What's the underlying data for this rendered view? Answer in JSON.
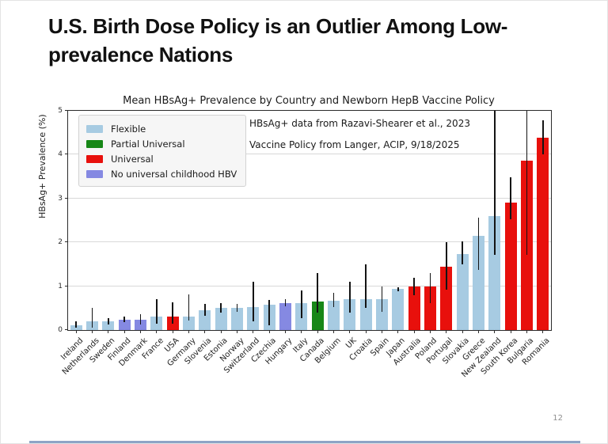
{
  "slide": {
    "title": "U.S. Birth Dose Policy is an Outlier Among Low-prevalence Nations",
    "page_number": "12"
  },
  "chart_data": {
    "type": "bar",
    "title": "Mean HBsAg+ Prevalence by Country and Newborn HepB Vaccine Policy",
    "xlabel": "",
    "ylabel": "HBsAg+ Prevalence (%)",
    "ylim": [
      0,
      5
    ],
    "yticks": [
      0,
      1,
      2,
      3,
      4,
      5
    ],
    "grid": true,
    "legend_position": "upper-left",
    "annotations": [
      "HBsAg+ data from Razavi-Shearer et al., 2023",
      "Vaccine Policy from Langer, ACIP, 9/18/2025"
    ],
    "legend": [
      {
        "key": "flexible",
        "label": "Flexible",
        "color": "#a7cbe2"
      },
      {
        "key": "partial",
        "label": "Partial Universal",
        "color": "#178717"
      },
      {
        "key": "universal",
        "label": "Universal",
        "color": "#e8100c"
      },
      {
        "key": "none",
        "label": "No universal childhood HBV",
        "color": "#8589e2"
      }
    ],
    "bars": [
      {
        "country": "Ireland",
        "value": 0.1,
        "err_low": 0.05,
        "err_high": 0.2,
        "policy": "flexible"
      },
      {
        "country": "Netherlands",
        "value": 0.19,
        "err_low": 0.05,
        "err_high": 0.5,
        "policy": "flexible"
      },
      {
        "country": "Sweden",
        "value": 0.2,
        "err_low": 0.12,
        "err_high": 0.28,
        "policy": "flexible"
      },
      {
        "country": "Finland",
        "value": 0.24,
        "err_low": 0.18,
        "err_high": 0.3,
        "policy": "none"
      },
      {
        "country": "Denmark",
        "value": 0.24,
        "err_low": 0.13,
        "err_high": 0.37,
        "policy": "none"
      },
      {
        "country": "France",
        "value": 0.3,
        "err_low": 0.15,
        "err_high": 0.7,
        "policy": "flexible"
      },
      {
        "country": "USA",
        "value": 0.3,
        "err_low": 0.15,
        "err_high": 0.64,
        "policy": "universal"
      },
      {
        "country": "Germany",
        "value": 0.31,
        "err_low": 0.22,
        "err_high": 0.81,
        "policy": "flexible"
      },
      {
        "country": "Slovenia",
        "value": 0.45,
        "err_low": 0.33,
        "err_high": 0.6,
        "policy": "flexible"
      },
      {
        "country": "Estonia",
        "value": 0.5,
        "err_low": 0.4,
        "err_high": 0.62,
        "policy": "flexible"
      },
      {
        "country": "Norway",
        "value": 0.5,
        "err_low": 0.42,
        "err_high": 0.6,
        "policy": "flexible"
      },
      {
        "country": "Switzerland",
        "value": 0.53,
        "err_low": 0.2,
        "err_high": 1.1,
        "policy": "flexible"
      },
      {
        "country": "Czechia",
        "value": 0.57,
        "err_low": 0.1,
        "err_high": 0.68,
        "policy": "flexible"
      },
      {
        "country": "Hungary",
        "value": 0.61,
        "err_low": 0.55,
        "err_high": 0.71,
        "policy": "none"
      },
      {
        "country": "Italy",
        "value": 0.61,
        "err_low": 0.28,
        "err_high": 0.9,
        "policy": "flexible"
      },
      {
        "country": "Canada",
        "value": 0.65,
        "err_low": 0.4,
        "err_high": 1.3,
        "policy": "partial"
      },
      {
        "country": "Belgium",
        "value": 0.66,
        "err_low": 0.52,
        "err_high": 0.84,
        "policy": "flexible"
      },
      {
        "country": "UK",
        "value": 0.7,
        "err_low": 0.4,
        "err_high": 1.1,
        "policy": "flexible"
      },
      {
        "country": "Croatia",
        "value": 0.7,
        "err_low": 0.5,
        "err_high": 1.5,
        "policy": "flexible"
      },
      {
        "country": "Spain",
        "value": 0.7,
        "err_low": 0.42,
        "err_high": 1.0,
        "policy": "flexible"
      },
      {
        "country": "Japan",
        "value": 0.93,
        "err_low": 0.88,
        "err_high": 0.98,
        "policy": "flexible"
      },
      {
        "country": "Australia",
        "value": 1.0,
        "err_low": 0.8,
        "err_high": 1.2,
        "policy": "universal"
      },
      {
        "country": "Poland",
        "value": 1.0,
        "err_low": 0.62,
        "err_high": 1.3,
        "policy": "universal"
      },
      {
        "country": "Portugal",
        "value": 1.45,
        "err_low": 0.92,
        "err_high": 2.0,
        "policy": "universal"
      },
      {
        "country": "Slovakia",
        "value": 1.73,
        "err_low": 1.5,
        "err_high": 2.02,
        "policy": "flexible"
      },
      {
        "country": "Greece",
        "value": 2.15,
        "err_low": 1.38,
        "err_high": 2.57,
        "policy": "flexible"
      },
      {
        "country": "New Zealand",
        "value": 2.6,
        "err_low": 1.72,
        "err_high": 5.0,
        "policy": "flexible"
      },
      {
        "country": "South Korea",
        "value": 2.91,
        "err_low": 2.52,
        "err_high": 3.48,
        "policy": "universal"
      },
      {
        "country": "Bulgaria",
        "value": 3.87,
        "err_low": 1.72,
        "err_high": 5.0,
        "policy": "universal"
      },
      {
        "country": "Romania",
        "value": 4.38,
        "err_low": 4.0,
        "err_high": 4.78,
        "policy": "universal"
      }
    ]
  }
}
